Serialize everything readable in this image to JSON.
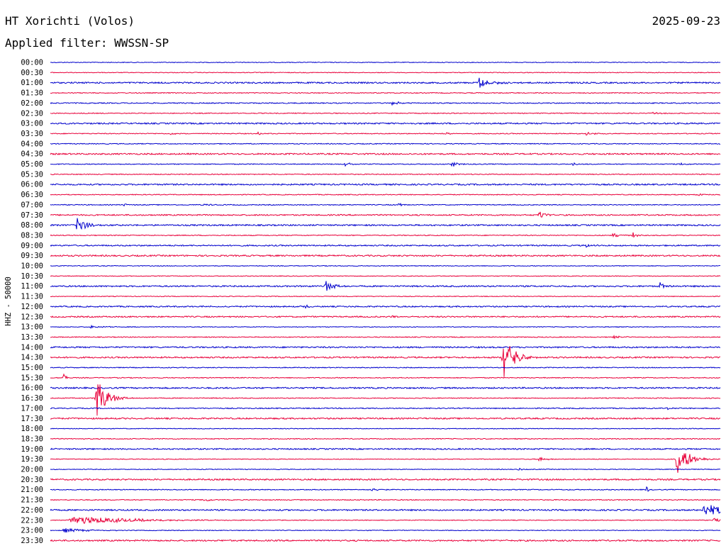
{
  "header": {
    "station": "HT Xorichti (Volos)",
    "date": "2025-09-23",
    "filter": "Applied filter: WWSSN-SP"
  },
  "chart_data": {
    "type": "line",
    "ylabel": "HHZ - 50000",
    "colors": {
      "even_hour": "#0000cc",
      "half_hour": "#e8003a"
    },
    "rows": [
      "00:00",
      "00:30",
      "01:00",
      "01:30",
      "02:00",
      "02:30",
      "03:00",
      "03:30",
      "04:00",
      "04:30",
      "05:00",
      "05:30",
      "06:00",
      "06:30",
      "07:00",
      "07:30",
      "08:00",
      "08:30",
      "09:00",
      "09:30",
      "10:00",
      "10:30",
      "11:00",
      "11:30",
      "12:00",
      "12:30",
      "13:00",
      "13:30",
      "14:00",
      "14:30",
      "15:00",
      "15:30",
      "16:00",
      "16:30",
      "17:00",
      "17:30",
      "18:00",
      "18:30",
      "19:00",
      "19:30",
      "20:00",
      "20:30",
      "21:00",
      "21:30",
      "22:00",
      "22:30",
      "23:00",
      "23:30"
    ],
    "noise": [
      0.5,
      0.5,
      1.0,
      0.6,
      0.7,
      0.6,
      1.0,
      0.6,
      0.6,
      1.0,
      0.6,
      0.6,
      1.0,
      0.6,
      0.6,
      0.9,
      1.0,
      0.6,
      0.9,
      1.0,
      0.5,
      0.5,
      1.0,
      0.5,
      0.9,
      0.9,
      0.5,
      0.6,
      1.0,
      1.0,
      0.6,
      0.6,
      1.0,
      0.6,
      0.7,
      1.0,
      0.5,
      0.6,
      0.9,
      0.5,
      0.5,
      1.0,
      0.6,
      0.6,
      1.0,
      0.5,
      0.5,
      1.0
    ],
    "events": [
      {
        "row": 2,
        "t": 0.64,
        "amp": 8,
        "dur": 0.015
      },
      {
        "row": 4,
        "t": 0.51,
        "amp": 3,
        "dur": 0.01
      },
      {
        "row": 5,
        "t": 0.9,
        "amp": 2,
        "dur": 0.01
      },
      {
        "row": 7,
        "t": 0.18,
        "amp": 2,
        "dur": 0.005
      },
      {
        "row": 7,
        "t": 0.31,
        "amp": 2,
        "dur": 0.005
      },
      {
        "row": 7,
        "t": 0.59,
        "amp": 2,
        "dur": 0.01
      },
      {
        "row": 7,
        "t": 0.8,
        "amp": 4,
        "dur": 0.008
      },
      {
        "row": 10,
        "t": 0.44,
        "amp": 3,
        "dur": 0.008
      },
      {
        "row": 10,
        "t": 0.6,
        "amp": 4,
        "dur": 0.01
      },
      {
        "row": 10,
        "t": 0.78,
        "amp": 3,
        "dur": 0.003
      },
      {
        "row": 10,
        "t": 0.94,
        "amp": 2,
        "dur": 0.008
      },
      {
        "row": 13,
        "t": 0.965,
        "amp": 5,
        "dur": 0.004
      },
      {
        "row": 14,
        "t": 0.11,
        "amp": 3,
        "dur": 0.003
      },
      {
        "row": 14,
        "t": 0.23,
        "amp": 2,
        "dur": 0.008
      },
      {
        "row": 14,
        "t": 0.52,
        "amp": 2,
        "dur": 0.01
      },
      {
        "row": 15,
        "t": 0.73,
        "amp": 6,
        "dur": 0.008
      },
      {
        "row": 16,
        "t": 0.04,
        "amp": 12,
        "dur": 0.012
      },
      {
        "row": 17,
        "t": 0.84,
        "amp": 4,
        "dur": 0.008
      },
      {
        "row": 17,
        "t": 0.87,
        "amp": 5,
        "dur": 0.005
      },
      {
        "row": 18,
        "t": 0.8,
        "amp": 4,
        "dur": 0.006
      },
      {
        "row": 22,
        "t": 0.41,
        "amp": 8,
        "dur": 0.012
      },
      {
        "row": 22,
        "t": 0.91,
        "amp": 5,
        "dur": 0.008
      },
      {
        "row": 24,
        "t": 0.24,
        "amp": 2,
        "dur": 0.005
      },
      {
        "row": 24,
        "t": 0.38,
        "amp": 4,
        "dur": 0.004
      },
      {
        "row": 25,
        "t": 0.51,
        "amp": 3,
        "dur": 0.003
      },
      {
        "row": 26,
        "t": 0.06,
        "amp": 2,
        "dur": 0.02
      },
      {
        "row": 27,
        "t": 0.84,
        "amp": 2,
        "dur": 0.015
      },
      {
        "row": 29,
        "t": 0.675,
        "amp": 38,
        "dur": 0.014
      },
      {
        "row": 31,
        "t": 0.02,
        "amp": 9,
        "dur": 0.003
      },
      {
        "row": 33,
        "t": 0.068,
        "amp": 30,
        "dur": 0.014
      },
      {
        "row": 34,
        "t": 0.92,
        "amp": 2,
        "dur": 0.005
      },
      {
        "row": 39,
        "t": 0.73,
        "amp": 4,
        "dur": 0.008
      },
      {
        "row": 39,
        "t": 0.935,
        "amp": 24,
        "dur": 0.016
      },
      {
        "row": 40,
        "t": 0.7,
        "amp": 4,
        "dur": 0.002
      },
      {
        "row": 42,
        "t": 0.48,
        "amp": 2,
        "dur": 0.01
      },
      {
        "row": 42,
        "t": 0.89,
        "amp": 6,
        "dur": 0.002
      },
      {
        "row": 43,
        "t": 0.23,
        "amp": 3,
        "dur": 0.008
      },
      {
        "row": 44,
        "t": 0.975,
        "amp": 8,
        "dur": 0.04
      },
      {
        "row": 45,
        "t": 0.03,
        "amp": 6,
        "dur": 0.08
      },
      {
        "row": 45,
        "t": 0.99,
        "amp": 4,
        "dur": 0.01
      },
      {
        "row": 46,
        "t": 0.02,
        "amp": 3,
        "dur": 0.03
      }
    ]
  }
}
